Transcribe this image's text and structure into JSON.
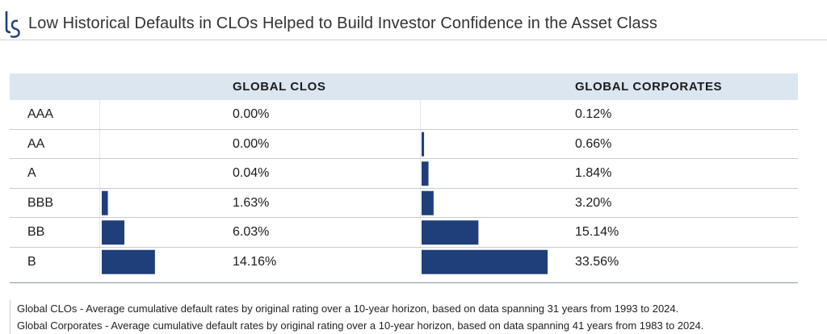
{
  "header": {
    "title": "Low Historical Defaults in CLOs Helped to Build Investor Confidence in the Asset Class"
  },
  "colors": {
    "bar": "#1f3f7a",
    "header_bg": "#dce6f1",
    "logo": "#1f3f7a"
  },
  "chart_data": {
    "type": "table",
    "columns": [
      "GLOBAL CLOS",
      "GLOBAL CORPORATES"
    ],
    "categories": [
      "AAA",
      "AA",
      "A",
      "BBB",
      "BB",
      "B"
    ],
    "series": [
      {
        "name": "GLOBAL CLOS",
        "values": [
          0.0,
          0.0,
          0.04,
          1.63,
          6.03,
          14.16
        ],
        "labels": [
          "0.00%",
          "0.00%",
          "0.04%",
          "1.63%",
          "6.03%",
          "14.16%"
        ]
      },
      {
        "name": "GLOBAL CORPORATES",
        "values": [
          0.12,
          0.66,
          1.84,
          3.2,
          15.14,
          33.56
        ],
        "labels": [
          "0.12%",
          "0.66%",
          "1.84%",
          "3.20%",
          "15.14%",
          "33.56%"
        ]
      }
    ],
    "unit": "%"
  },
  "footnotes": [
    "Global CLOs - Average cumulative default rates by original rating over a 10-year horizon, based on data spanning 31 years from 1993 to 2024.",
    "Global Corporates - Average cumulative default rates by original rating over a 10-year horizon, based on data spanning 41 years from 1983 to 2024."
  ]
}
